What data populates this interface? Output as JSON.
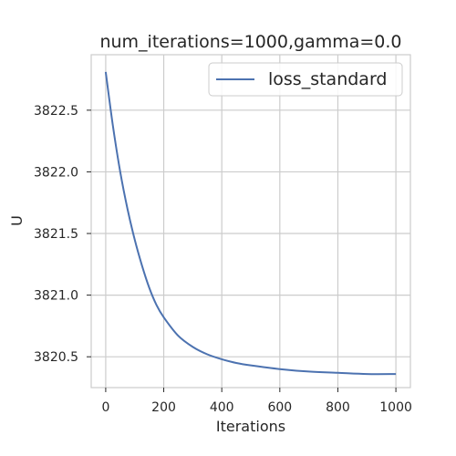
{
  "chart_data": {
    "type": "line",
    "title": "num_iterations=1000,gamma=0.0",
    "xlabel": "Iterations",
    "ylabel": "U",
    "xlim": [
      -50,
      1050
    ],
    "ylim": [
      3820.25,
      3822.95
    ],
    "xticks": [
      0,
      200,
      400,
      600,
      800,
      1000
    ],
    "yticks": [
      3820.5,
      3821.0,
      3821.5,
      3822.0,
      3822.5
    ],
    "xtick_labels": [
      "0",
      "200",
      "400",
      "600",
      "800",
      "1000"
    ],
    "ytick_labels": [
      "3820.5",
      "3821.0",
      "3821.5",
      "3822.0",
      "3822.5"
    ],
    "grid": true,
    "legend_position": "top-right",
    "series": [
      {
        "name": "loss_standard",
        "color": "#4c72b0",
        "x": [
          0,
          25,
          50,
          75,
          100,
          125,
          150,
          175,
          200,
          250,
          300,
          350,
          400,
          450,
          500,
          600,
          700,
          800,
          900,
          1000
        ],
        "y": [
          3822.81,
          3822.37,
          3822.0,
          3821.7,
          3821.45,
          3821.24,
          3821.06,
          3820.92,
          3820.82,
          3820.67,
          3820.58,
          3820.52,
          3820.48,
          3820.45,
          3820.43,
          3820.4,
          3820.38,
          3820.37,
          3820.36,
          3820.36
        ]
      }
    ]
  }
}
